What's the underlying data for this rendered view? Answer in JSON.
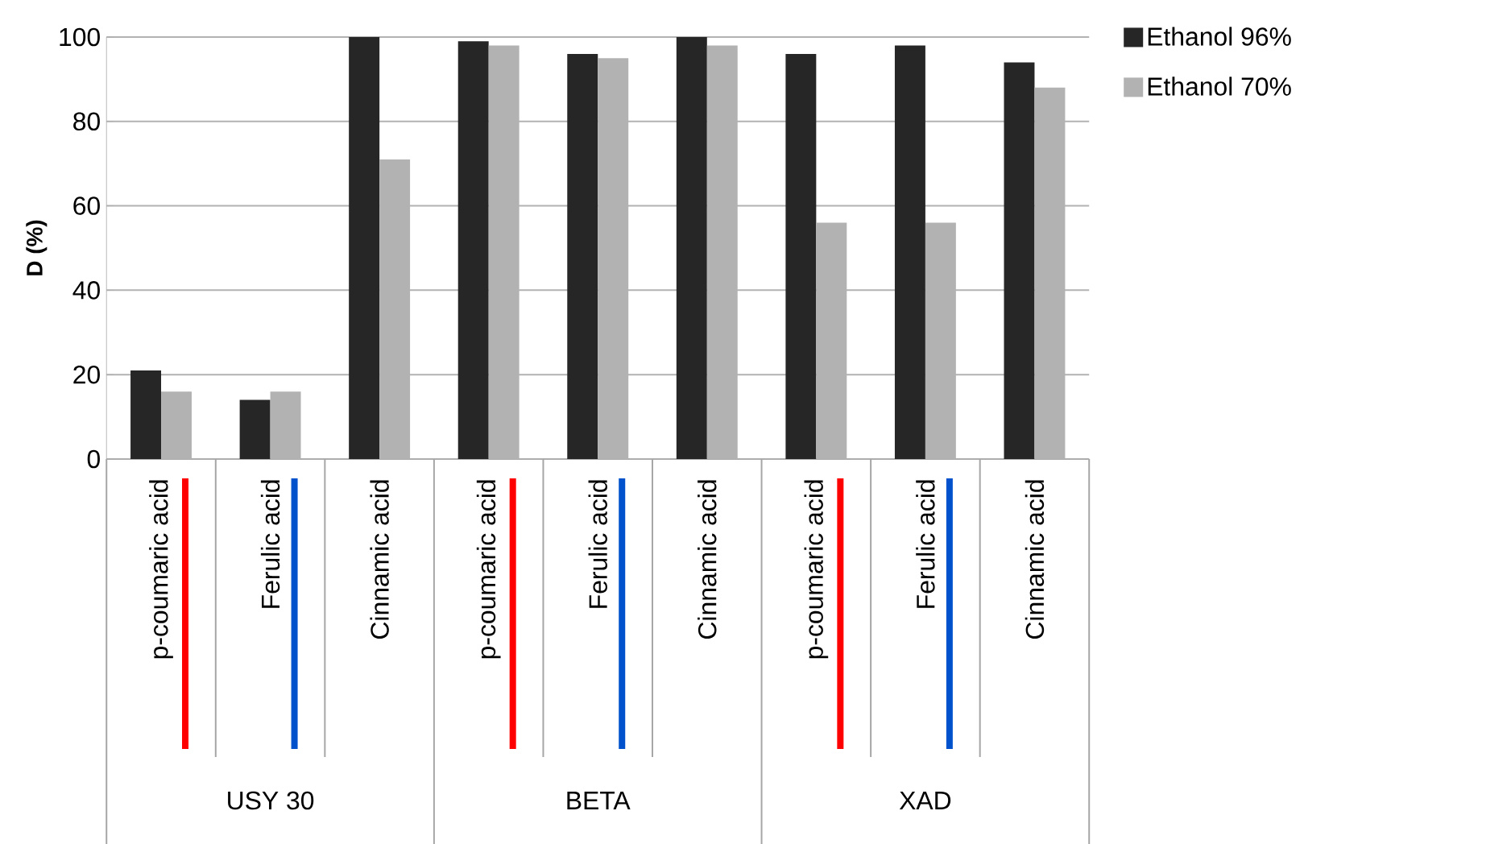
{
  "chart_data": {
    "type": "bar",
    "ylabel": "D (%)",
    "categories": [
      "p-coumaric acid",
      "Ferulic acid",
      "Cinnamic acid",
      "p-coumaric acid",
      "Ferulic acid",
      "Cinnamic acid",
      "p-coumaric acid",
      "Ferulic acid",
      "Cinnamic acid"
    ],
    "series": [
      {
        "name": "Ethanol 96%",
        "color": "#262626",
        "values": [
          21,
          14,
          100,
          99,
          96,
          100,
          96,
          98,
          94
        ]
      },
      {
        "name": "Ethanol 70%",
        "color": "#b2b2b2",
        "values": [
          16,
          16,
          71,
          98,
          95,
          98,
          56,
          56,
          88
        ]
      }
    ],
    "annotations": [
      "USY 30",
      "BETA",
      "XAD"
    ],
    "ylim": [
      0,
      100
    ],
    "yticks": [
      0,
      20,
      40,
      60,
      80,
      100
    ],
    "grid": "y",
    "legend": "top right"
  }
}
